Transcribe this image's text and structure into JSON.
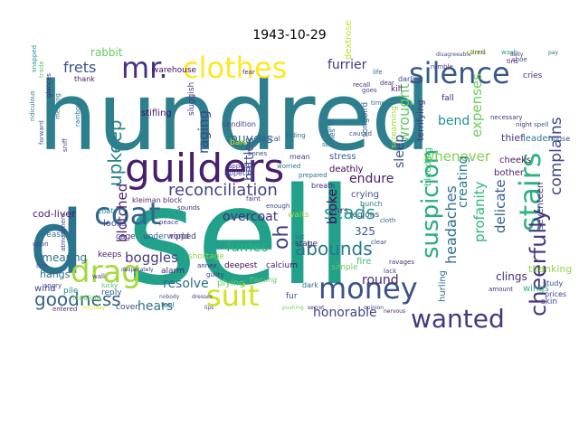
{
  "chart_data": {
    "type": "wordcloud",
    "title": "1943-10-29",
    "words": [
      {
        "text": "sell",
        "color": "#21a08a"
      },
      {
        "text": "hundred",
        "color": "#2d7f8e"
      },
      {
        "text": "d",
        "color": "#2c738e"
      },
      {
        "text": "guilders",
        "color": "#481f70"
      },
      {
        "text": "mr.",
        "color": "#46317e"
      },
      {
        "text": "clothes",
        "color": "#fde725"
      },
      {
        "text": "silence",
        "color": "#38598c"
      },
      {
        "text": "drag",
        "color": "#a2da37"
      },
      {
        "text": "coat",
        "color": "#32658e"
      },
      {
        "text": "money",
        "color": "#3a538b"
      },
      {
        "text": "wanted",
        "color": "#453781"
      },
      {
        "text": "suit",
        "color": "#d2e21b"
      },
      {
        "text": "stairs",
        "color": "#2db27d"
      },
      {
        "text": "cheerfully",
        "color": "#453581"
      },
      {
        "text": "suspicion",
        "color": "#27ad81"
      },
      {
        "text": "reconciliation",
        "color": "#414487"
      },
      {
        "text": "abounds",
        "color": "#2a788e"
      },
      {
        "text": "goodness",
        "color": "#33638d"
      },
      {
        "text": "upkeep",
        "color": "#26828e"
      },
      {
        "text": "oh",
        "color": "#424086"
      },
      {
        "text": "scads",
        "color": "#1fa187"
      },
      {
        "text": "complains",
        "color": "#3e4989"
      },
      {
        "text": "frets",
        "color": "#3b528b"
      },
      {
        "text": "rabbit",
        "color": "#65cb5e"
      },
      {
        "text": "blotched",
        "color": "#482475"
      },
      {
        "text": "raging",
        "color": "#414287"
      },
      {
        "text": "boggles",
        "color": "#443a83"
      },
      {
        "text": "fumes",
        "color": "#29af7f"
      },
      {
        "text": "furrier",
        "color": "#46327e"
      },
      {
        "text": "dextrose",
        "color": "#bddf26"
      },
      {
        "text": "buyers",
        "color": "#2f6c8e"
      },
      {
        "text": "battles",
        "color": "#3d4d8a"
      },
      {
        "text": "wrought",
        "color": "#5ec962"
      },
      {
        "text": "endure",
        "color": "#481b6d"
      },
      {
        "text": "whenever",
        "color": "#7ad151"
      },
      {
        "text": "creating",
        "color": "#29798e"
      },
      {
        "text": "sleep",
        "color": "#3d4e8a"
      },
      {
        "text": "bend",
        "color": "#21918c"
      },
      {
        "text": "expenses",
        "color": "#6ccd5a"
      },
      {
        "text": "headaches",
        "color": "#2e6e8e"
      },
      {
        "text": "delicate",
        "color": "#355f8d"
      },
      {
        "text": "profanity",
        "color": "#31b57b"
      },
      {
        "text": "broke",
        "color": "#450559"
      },
      {
        "text": "round",
        "color": "#482878"
      },
      {
        "text": "honorable",
        "color": "#404588"
      },
      {
        "text": "resolve",
        "color": "#306a8e"
      },
      {
        "text": "hears",
        "color": "#2a768e"
      },
      {
        "text": "overcoat",
        "color": "#472d7b"
      },
      {
        "text": "325",
        "color": "#3b518b"
      },
      {
        "text": "warehouse",
        "color": "#46085c"
      },
      {
        "text": "stifling",
        "color": "#470e61"
      },
      {
        "text": "sluggish",
        "color": "#453882"
      },
      {
        "text": "kleiman",
        "color": "#482979"
      },
      {
        "text": "block",
        "color": "#472a7a"
      },
      {
        "text": "cod-liver",
        "color": "#48196b"
      },
      {
        "text": "coats",
        "color": "#26828e"
      },
      {
        "text": "looks",
        "color": "#3f4889"
      },
      {
        "text": "cage",
        "color": "#46307e"
      },
      {
        "text": "underworld",
        "color": "#3b528b"
      },
      {
        "text": "ripped",
        "color": "#472f7d"
      },
      {
        "text": "keeps",
        "color": "#482173"
      },
      {
        "text": "smearing",
        "color": "#2c728e"
      },
      {
        "text": "hangs",
        "color": "#2e6f8e"
      },
      {
        "text": "wind",
        "color": "#3f4788"
      },
      {
        "text": "pile",
        "color": "#21918c"
      },
      {
        "text": "deepest",
        "color": "#440256"
      },
      {
        "text": "plying",
        "color": "#6ece58"
      },
      {
        "text": "calcium",
        "color": "#48186a"
      },
      {
        "text": "clings",
        "color": "#472c7a"
      },
      {
        "text": "thanking",
        "color": "#90d743"
      },
      {
        "text": "cheeks",
        "color": "#481668"
      },
      {
        "text": "thief",
        "color": "#453882"
      },
      {
        "text": "leaden",
        "color": "#2a778e"
      },
      {
        "text": "bother",
        "color": "#482475"
      },
      {
        "text": "seventeen",
        "color": "#472e7c"
      },
      {
        "text": "wings",
        "color": "#32b67a"
      },
      {
        "text": "stress",
        "color": "#38598c"
      },
      {
        "text": "deathly",
        "color": "#440154"
      },
      {
        "text": "crying",
        "color": "#3b528b"
      },
      {
        "text": "fire",
        "color": "#44bf70"
      },
      {
        "text": "songbird",
        "color": "#31668e"
      },
      {
        "text": "screaming",
        "color": "#9fda3a"
      },
      {
        "text": "terrifying",
        "color": "#46337f"
      },
      {
        "text": "bleeding",
        "color": "#38b977"
      },
      {
        "text": "hurling",
        "color": "#2f6b8e"
      },
      {
        "text": "mrs.",
        "color": "#3f4889"
      },
      {
        "text": "yeast",
        "color": "#2c738e"
      },
      {
        "text": "fur",
        "color": "#3b528b"
      },
      {
        "text": "skin",
        "color": "#3e4a89"
      },
      {
        "text": "shortage",
        "color": "#8bd646"
      },
      {
        "text": "bars",
        "color": "#d8e219"
      },
      {
        "text": "cries",
        "color": "#472d7b"
      },
      {
        "text": "stealing",
        "color": "#7fd34e"
      },
      {
        "text": "reply",
        "color": "#34618d"
      },
      {
        "text": "cover",
        "color": "#414487"
      },
      {
        "text": "alarm",
        "color": "#482677"
      },
      {
        "text": "kill",
        "color": "#471365"
      },
      {
        "text": "fall",
        "color": "#482173"
      },
      {
        "text": "darling",
        "color": "#3e4c8a"
      },
      {
        "text": "flaming",
        "color": "#5cc863"
      },
      {
        "text": "feel",
        "color": "#2e6d8e"
      },
      {
        "text": "dark",
        "color": "#31688e"
      },
      {
        "text": "necessary",
        "color": "#46327e"
      },
      {
        "text": "regions",
        "color": "#3c4f8a"
      },
      {
        "text": "simple",
        "color": "#6ccd5a"
      },
      {
        "text": "mean",
        "color": "#414487"
      },
      {
        "text": "lies",
        "color": "#2a778e"
      },
      {
        "text": "stage",
        "color": "#472c7a"
      },
      {
        "text": "condition",
        "color": "#404588"
      },
      {
        "text": "appetite",
        "color": "#3f4889"
      },
      {
        "text": "rascal",
        "color": "#365d8d"
      },
      {
        "text": "breath",
        "color": "#482878"
      },
      {
        "text": "amount",
        "color": "#46307e"
      },
      {
        "text": "house",
        "color": "#3a548c"
      },
      {
        "text": "study",
        "color": "#3e4c8a"
      },
      {
        "text": "prices",
        "color": "#414487"
      },
      {
        "text": "thank",
        "color": "#48196b"
      },
      {
        "text": "trade",
        "color": "#5ec962"
      },
      {
        "text": "meeting",
        "color": "#297a8e"
      },
      {
        "text": "glances",
        "color": "#482878"
      },
      {
        "text": "rainbow",
        "color": "#2c728e"
      },
      {
        "text": "waits",
        "color": "#95d840"
      },
      {
        "text": "bunch",
        "color": "#2a788e"
      },
      {
        "text": "clear",
        "color": "#3e4989"
      },
      {
        "text": "cloth",
        "color": "#32648e"
      },
      {
        "text": "annex",
        "color": "#482979"
      },
      {
        "text": "guilty",
        "color": "#443983"
      },
      {
        "text": "hiding",
        "color": "#31688e"
      },
      {
        "text": "scrap",
        "color": "#2b758e"
      },
      {
        "text": "nobody",
        "color": "#3b528b"
      },
      {
        "text": "dresses",
        "color": "#453882"
      },
      {
        "text": "lips",
        "color": "#3f4889"
      },
      {
        "text": "pushing",
        "color": "#7ad151"
      },
      {
        "text": "secret",
        "color": "#46307e"
      },
      {
        "text": "entered",
        "color": "#472c7a"
      },
      {
        "text": "monday",
        "color": "#e5e419"
      },
      {
        "text": "opinion",
        "color": "#414487"
      },
      {
        "text": "nervous",
        "color": "#482475"
      },
      {
        "text": "disagreeable",
        "color": "#3b528b"
      },
      {
        "text": "snapped",
        "color": "#21918c"
      },
      {
        "text": "atmosphere",
        "color": "#414487"
      },
      {
        "text": "ridiculous",
        "color": "#2a788e"
      },
      {
        "text": "forward",
        "color": "#355f8d"
      },
      {
        "text": "sniff",
        "color": "#3f4889"
      },
      {
        "text": "recall",
        "color": "#482878"
      },
      {
        "text": "appeal",
        "color": "#453882"
      },
      {
        "text": "worried",
        "color": "#31688e"
      },
      {
        "text": "prepared",
        "color": "#2c728e"
      },
      {
        "text": "faint",
        "color": "#472d7b"
      },
      {
        "text": "enough",
        "color": "#3e4a89"
      },
      {
        "text": "wash",
        "color": "#20a386"
      },
      {
        "text": "tired",
        "color": "#46307e"
      },
      {
        "text": "rumble",
        "color": "#414487"
      },
      {
        "text": "tins",
        "color": "#482173"
      },
      {
        "text": "shoe",
        "color": "#3b528b"
      },
      {
        "text": "daily",
        "color": "#46337f"
      },
      {
        "text": "pay",
        "color": "#2e6e8e"
      },
      {
        "text": "angry",
        "color": "#3f4889"
      },
      {
        "text": "bits",
        "color": "#38598c"
      },
      {
        "text": "desperately",
        "color": "#472c7a"
      },
      {
        "text": "climb",
        "color": "#2f6c8e"
      },
      {
        "text": "ravages",
        "color": "#482878"
      },
      {
        "text": "lack",
        "color": "#414487"
      },
      {
        "text": "dear",
        "color": "#46307e"
      },
      {
        "text": "goes",
        "color": "#3e4989"
      },
      {
        "text": "life",
        "color": "#31688e"
      },
      {
        "text": "caused",
        "color": "#3b528b"
      },
      {
        "text": "clutch",
        "color": "#b5de2b"
      },
      {
        "text": "sat",
        "color": "#2a788e"
      },
      {
        "text": "sounds",
        "color": "#472d7b"
      },
      {
        "text": "peace",
        "color": "#453882"
      },
      {
        "text": "upon",
        "color": "#3f4889"
      },
      {
        "text": "wall",
        "color": "#414487"
      },
      {
        "text": "lucky",
        "color": "#4ac16d"
      },
      {
        "text": "bones",
        "color": "#3e4c8a"
      },
      {
        "text": "fear",
        "color": "#482878"
      },
      {
        "text": "times",
        "color": "#2c728e"
      },
      {
        "text": "night",
        "color": "#46307e"
      },
      {
        "text": "spell",
        "color": "#3b528b"
      }
    ]
  }
}
